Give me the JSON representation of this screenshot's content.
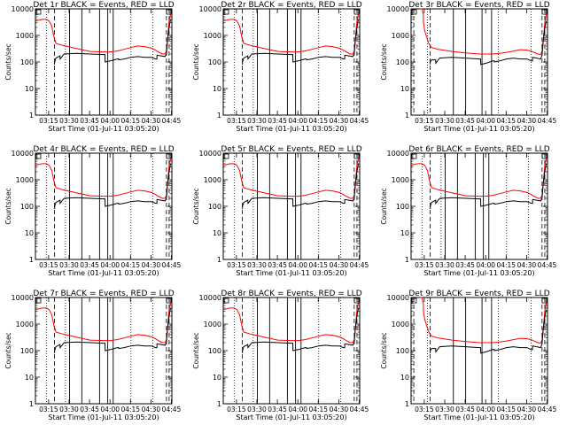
{
  "chart_data": {
    "type": "line",
    "title_template": "Det {n}r BLACK = Events, RED = LLD",
    "xlabel": "Start Time (01-Jul-11 03:05:20)",
    "ylabel": "Counts/sec",
    "y_scale": "log",
    "ylim": [
      1,
      10000
    ],
    "xlim_min_from_start": [
      0,
      100
    ],
    "x_tick_labels": [
      "03:15",
      "03:30",
      "03:45",
      "04:00",
      "04:15",
      "04:30",
      "04:45"
    ],
    "x_tick_min_from_start": [
      9.67,
      24.67,
      39.67,
      54.67,
      69.67,
      84.67,
      99.67
    ],
    "y_tick_labels": [
      "1",
      "10",
      "100",
      "1000",
      "10000"
    ],
    "y_tick_values": [
      1,
      10,
      100,
      1000,
      10000
    ],
    "series_colors": {
      "events": "#000000",
      "lld": "#ff0000"
    },
    "panels": [
      {
        "det": "1",
        "title": "Det 1r BLACK = Events, RED = LLD",
        "type_id": "A"
      },
      {
        "det": "2",
        "title": "Det 2r BLACK = Events, RED = LLD",
        "type_id": "A"
      },
      {
        "det": "3",
        "title": "Det 3r BLACK = Events, RED = LLD",
        "type_id": "B"
      },
      {
        "det": "4",
        "title": "Det 4r BLACK = Events, RED = LLD",
        "type_id": "A"
      },
      {
        "det": "5",
        "title": "Det 5r BLACK = Events, RED = LLD",
        "type_id": "A"
      },
      {
        "det": "6",
        "title": "Det 6r BLACK = Events, RED = LLD",
        "type_id": "A"
      },
      {
        "det": "7",
        "title": "Det 7r BLACK = Events, RED = LLD",
        "type_id": "A"
      },
      {
        "det": "8",
        "title": "Det 8r BLACK = Events, RED = LLD",
        "type_id": "A"
      },
      {
        "det": "9",
        "title": "Det 9r BLACK = Events, RED = LLD",
        "type_id": "B"
      }
    ],
    "types": {
      "A": {
        "lld": {
          "x": [
            0,
            5,
            8,
            10,
            12,
            13.5,
            15,
            20,
            30,
            40,
            50,
            55,
            60,
            65,
            70,
            75,
            80,
            85,
            88,
            90,
            93,
            95,
            96,
            97,
            98,
            99,
            100
          ],
          "y": [
            3500,
            4000,
            4000,
            3500,
            2200,
            900,
            500,
            420,
            320,
            250,
            240,
            240,
            260,
            300,
            350,
            400,
            380,
            330,
            280,
            240,
            200,
            200,
            260,
            900,
            3500,
            6000,
            6000
          ]
        },
        "events": {
          "x": [
            14,
            14.1,
            15,
            17,
            18,
            18.1,
            21,
            30,
            40,
            50,
            51,
            51.1,
            55,
            60,
            61,
            61.1,
            65,
            70,
            75,
            80,
            85,
            88,
            89,
            89.1,
            92,
            95,
            96,
            97,
            98,
            99
          ],
          "y": [
            80,
            100,
            140,
            160,
            170,
            130,
            200,
            210,
            200,
            190,
            190,
            100,
            110,
            130,
            130,
            120,
            130,
            150,
            160,
            150,
            150,
            130,
            130,
            180,
            170,
            160,
            200,
            800,
            2000,
            4000
          ]
        }
      },
      "B": {
        "lld": {
          "x": [
            7,
            8,
            9,
            9.1,
            10,
            12,
            13,
            15,
            20,
            30,
            40,
            50,
            60,
            65,
            70,
            75,
            80,
            85,
            88,
            90,
            93,
            95,
            96,
            97,
            98,
            99,
            100
          ],
          "y": [
            10000,
            10000,
            6000,
            3000,
            1500,
            700,
            500,
            350,
            300,
            250,
            220,
            200,
            200,
            210,
            230,
            260,
            290,
            280,
            260,
            230,
            200,
            190,
            250,
            800,
            3000,
            6000,
            6000
          ]
        },
        "events": {
          "x": [
            14,
            14.1,
            15,
            17,
            18,
            18.1,
            21,
            30,
            40,
            50,
            51,
            51.1,
            55,
            60,
            61,
            61.1,
            65,
            70,
            75,
            80,
            85,
            88,
            89,
            89.1,
            92,
            95,
            96,
            97,
            98,
            99
          ],
          "y": [
            80,
            100,
            120,
            120,
            120,
            90,
            140,
            150,
            140,
            130,
            130,
            80,
            90,
            110,
            110,
            100,
            110,
            130,
            140,
            130,
            130,
            110,
            110,
            150,
            140,
            130,
            180,
            700,
            1800,
            3500
          ]
        }
      }
    },
    "vertical_markers": {
      "A": {
        "solid": [
          25,
          34,
          47,
          53,
          57
        ],
        "dotted": [
          8,
          22,
          70,
          86
        ],
        "dashed": [
          14,
          96,
          98
        ]
      },
      "B": {
        "solid": [
          31,
          40,
          52,
          59
        ],
        "dotted": [
          12,
          64,
          88
        ],
        "dashed": [
          2,
          14,
          96,
          98
        ]
      }
    },
    "corner_marker_note": "small square markers at top edge"
  }
}
